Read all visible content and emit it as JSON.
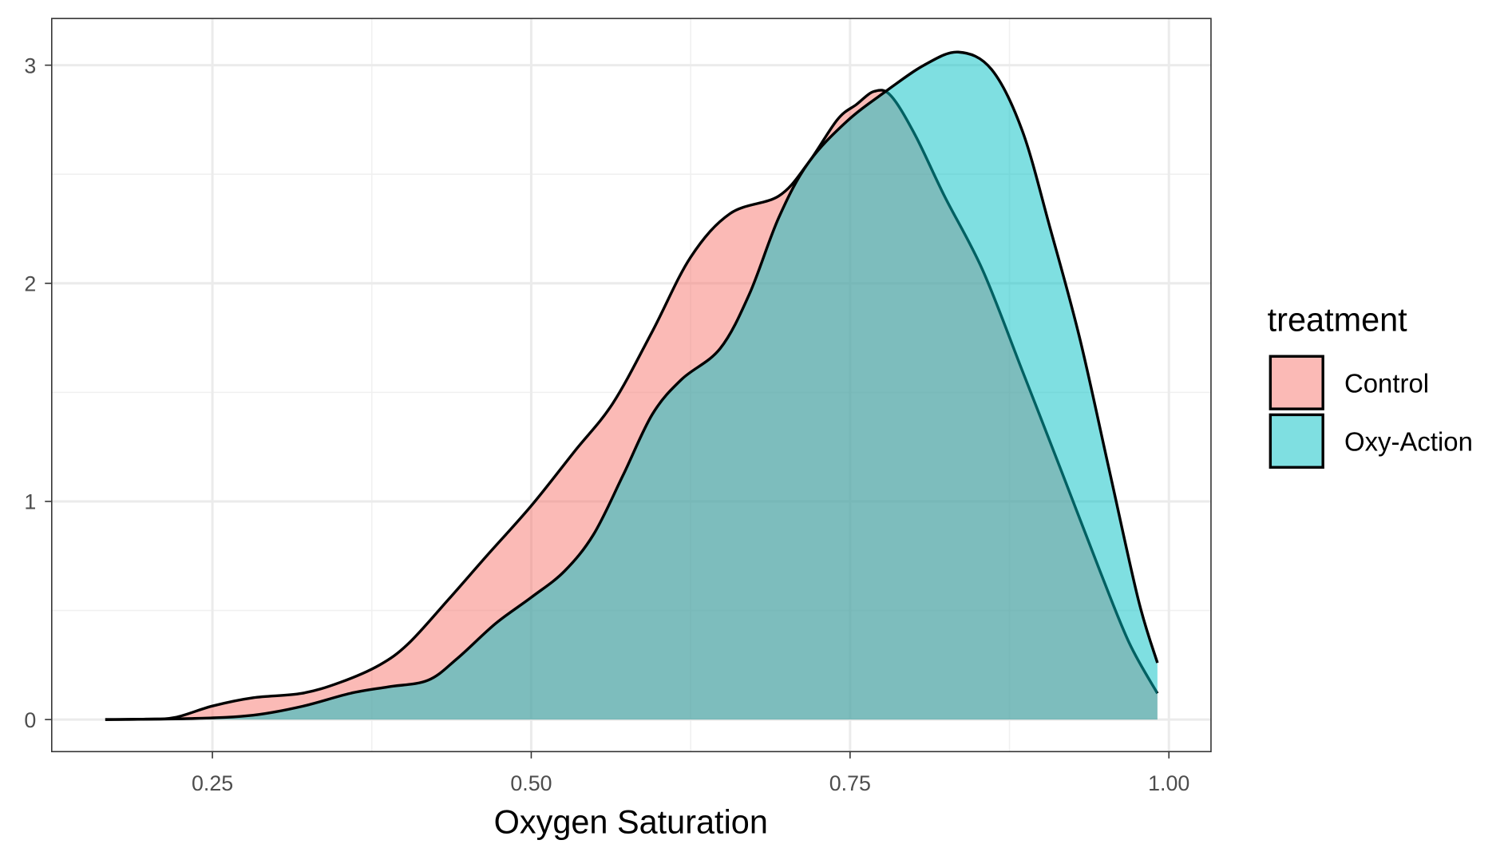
{
  "chart_data": {
    "type": "area",
    "subtype": "density",
    "title": "",
    "xlabel": "Oxygen Saturation",
    "ylabel": "",
    "xlim": [
      0.124,
      1.033
    ],
    "ylim": [
      -0.147,
      3.214
    ],
    "xticks": [
      0.25,
      0.5,
      0.75,
      1.0
    ],
    "xtick_labels": [
      "0.25",
      "0.50",
      "0.75",
      "1.00"
    ],
    "yticks": [
      0,
      1,
      2,
      3
    ],
    "ytick_labels": [
      "0",
      "1",
      "2",
      "3"
    ],
    "grid": true,
    "legend": {
      "title": "treatment",
      "placement": "right"
    },
    "series": [
      {
        "name": "Control",
        "color": "#F8766D",
        "alpha": 0.5,
        "x": [
          0.166,
          0.198,
          0.221,
          0.25,
          0.282,
          0.32,
          0.35,
          0.381,
          0.404,
          0.435,
          0.465,
          0.5,
          0.534,
          0.564,
          0.595,
          0.625,
          0.656,
          0.694,
          0.717,
          0.74,
          0.755,
          0.769,
          0.782,
          0.801,
          0.824,
          0.854,
          0.885,
          0.915,
          0.946,
          0.969,
          0.991
        ],
        "y": [
          0,
          0.002,
          0.01,
          0.062,
          0.1,
          0.12,
          0.17,
          0.25,
          0.35,
          0.55,
          0.75,
          0.98,
          1.23,
          1.45,
          1.78,
          2.12,
          2.32,
          2.4,
          2.55,
          2.75,
          2.82,
          2.88,
          2.86,
          2.68,
          2.4,
          2.06,
          1.6,
          1.15,
          0.68,
          0.35,
          0.12
        ]
      },
      {
        "name": "Oxy-Action",
        "color": "#00BFC4",
        "alpha": 0.5,
        "x": [
          0.166,
          0.236,
          0.282,
          0.32,
          0.358,
          0.388,
          0.419,
          0.442,
          0.472,
          0.5,
          0.526,
          0.549,
          0.572,
          0.595,
          0.618,
          0.648,
          0.671,
          0.694,
          0.717,
          0.747,
          0.778,
          0.808,
          0.835,
          0.861,
          0.885,
          0.907,
          0.93,
          0.953,
          0.976,
          0.991
        ],
        "y": [
          0,
          0.005,
          0.02,
          0.06,
          0.12,
          0.15,
          0.18,
          0.28,
          0.44,
          0.56,
          0.68,
          0.85,
          1.12,
          1.4,
          1.56,
          1.7,
          1.95,
          2.3,
          2.55,
          2.74,
          2.88,
          3.0,
          3.06,
          2.98,
          2.7,
          2.25,
          1.75,
          1.15,
          0.55,
          0.26
        ]
      }
    ]
  }
}
